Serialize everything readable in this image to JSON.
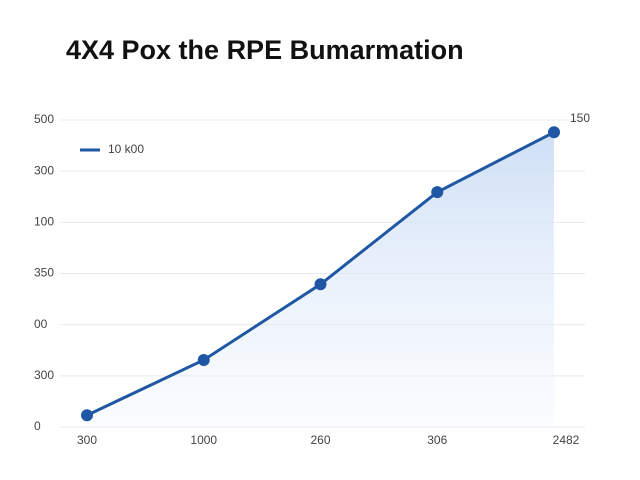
{
  "chart_data": {
    "type": "line",
    "title": "4X4 Pox the RPE Bumarmation",
    "categories": [
      "300",
      "1000",
      "260",
      "306",
      "2482"
    ],
    "series": [
      {
        "name": "10 k00",
        "color": "#1f57a4",
        "values": [
          0.23,
          1.31,
          2.79,
          4.59,
          5.76
        ]
      }
    ],
    "ylim": [
      0,
      6
    ],
    "yticks": [
      0,
      {
        "value": 1,
        "label": "300"
      },
      {
        "value": 2,
        "label": "00"
      },
      {
        "value": 3,
        "label": "350"
      },
      {
        "value": 4,
        "label": "100"
      },
      {
        "value": 5,
        "label": "300"
      },
      {
        "value": 6,
        "label": "500"
      }
    ],
    "grid": true,
    "legend": "upper left",
    "annotation": "150"
  }
}
